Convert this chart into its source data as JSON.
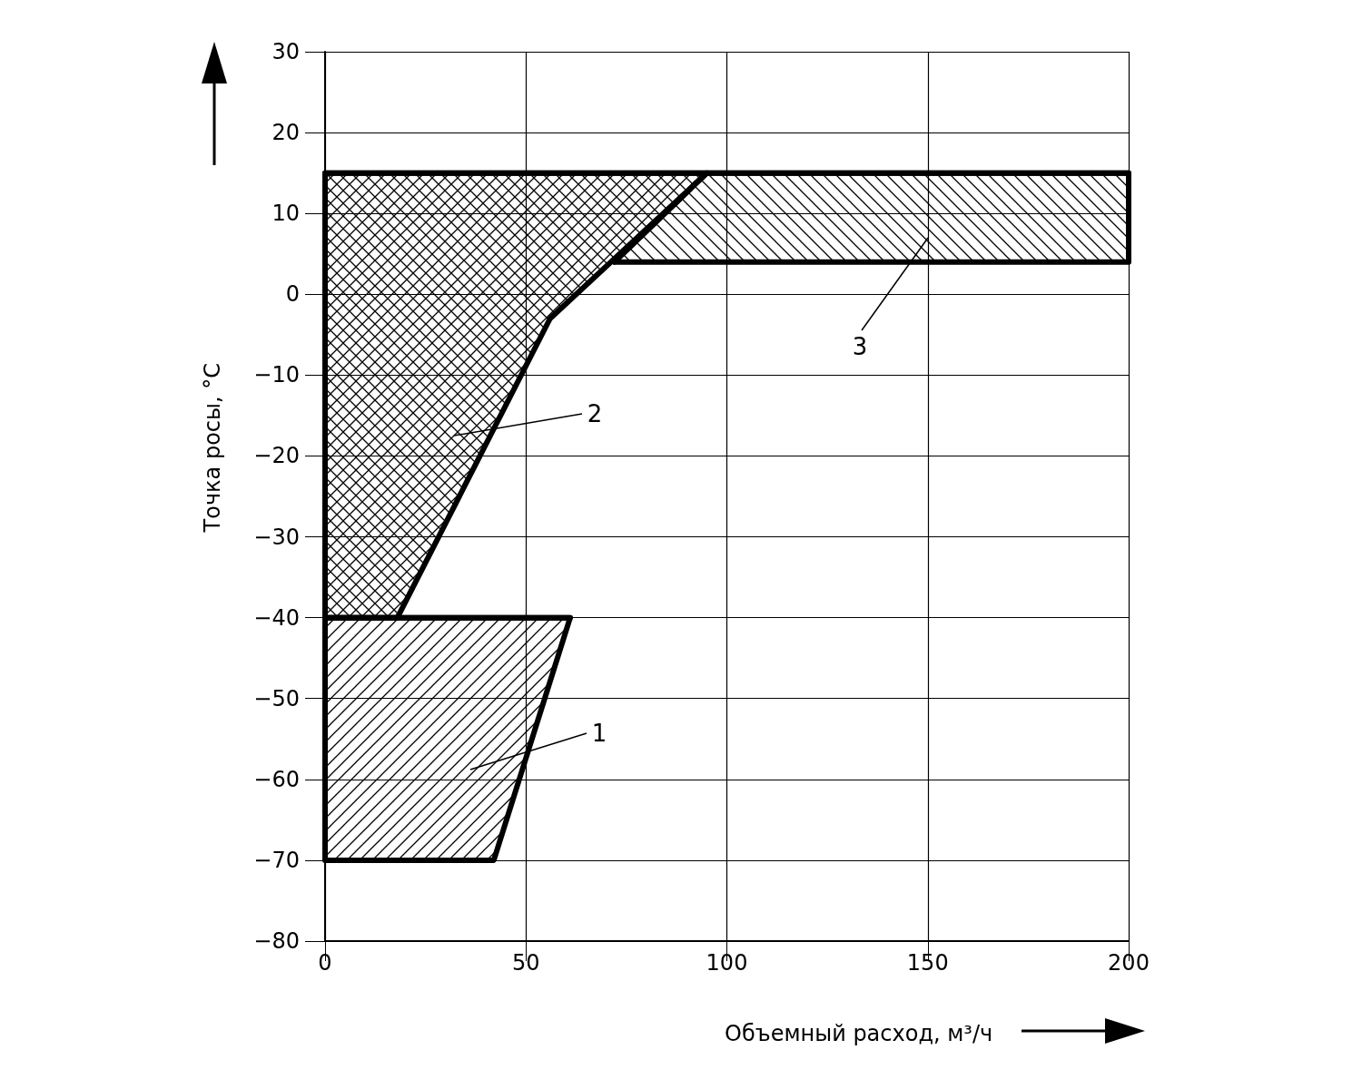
{
  "chart_data": {
    "type": "line",
    "xlabel": "Объемный расход, м³/ч",
    "ylabel": "Точка росы, °С",
    "xlim": [
      0,
      200
    ],
    "xticks": [
      0,
      50,
      100,
      150,
      200
    ],
    "ylim": [
      -80,
      30
    ],
    "yticks": [
      -80,
      -70,
      -60,
      -50,
      -40,
      -30,
      -20,
      -10,
      0,
      10,
      20,
      30
    ],
    "grid": true,
    "series": [
      {
        "color": "#000000",
        "x": [
          0,
          42,
          61
        ],
        "values": [
          -40,
          -40,
          -40
        ],
        "upper": [
          -40,
          -40,
          -40
        ],
        "lower": [
          -70,
          -70,
          -40
        ]
      },
      {
        "color": "#000000",
        "x": [
          0,
          18,
          56,
          95
        ],
        "values": [
          15,
          15,
          15,
          15
        ],
        "upper": [
          15,
          15,
          15,
          15
        ],
        "lower": [
          -40,
          -40,
          -3,
          15
        ]
      },
      {
        "color": "#000000",
        "x": [
          72,
          95,
          200
        ],
        "values": [
          4,
          15,
          15
        ],
        "upper": [
          4,
          15,
          15
        ],
        "lower": [
          4,
          4,
          4
        ]
      }
    ],
    "annotations": [
      "1",
      "2",
      "3"
    ]
  }
}
